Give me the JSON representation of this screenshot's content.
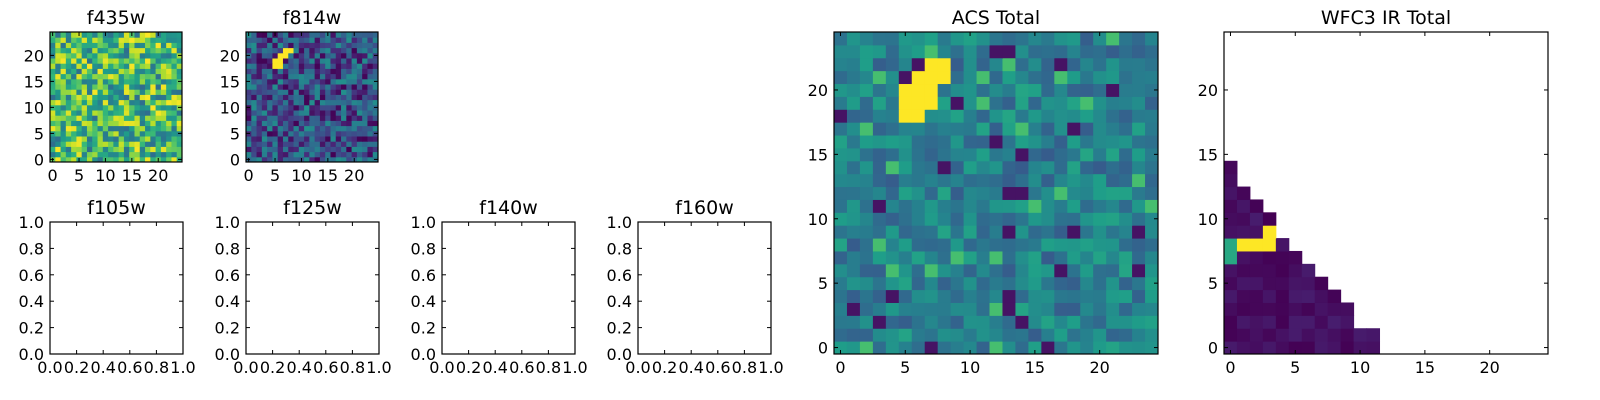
{
  "chart_data": [
    {
      "type": "heatmap",
      "title": "f435w",
      "xlim": [
        -0.5,
        24.5
      ],
      "ylim": [
        -0.5,
        24.5
      ],
      "x_ticks": [
        0,
        5,
        10,
        15,
        20
      ],
      "y_ticks": [
        0,
        5,
        10,
        15,
        20
      ],
      "colormap": "viridis",
      "origin": "lower",
      "grid_size": [
        25,
        25
      ],
      "pattern": "uniform noise"
    },
    {
      "type": "heatmap",
      "title": "f814w",
      "xlim": [
        -0.5,
        24.5
      ],
      "ylim": [
        -0.5,
        24.5
      ],
      "x_ticks": [
        0,
        5,
        10,
        15,
        20
      ],
      "y_ticks": [
        0,
        5,
        10,
        15,
        20
      ],
      "colormap": "viridis",
      "origin": "lower",
      "grid_size": [
        25,
        25
      ],
      "pattern": "dark noise with bright source",
      "bright_pixels": [
        [
          5,
          19
        ],
        [
          6,
          19
        ],
        [
          6,
          20
        ],
        [
          7,
          20
        ],
        [
          7,
          21
        ],
        [
          8,
          21
        ],
        [
          5,
          18
        ],
        [
          6,
          18
        ]
      ]
    },
    {
      "type": "heatmap",
      "title": "f105w",
      "xlim": [
        0,
        1
      ],
      "ylim": [
        0,
        1
      ],
      "x_ticks": [
        "0.0",
        "0.2",
        "0.4",
        "0.6",
        "0.8",
        "1.0"
      ],
      "y_ticks": [
        "0.0",
        "0.2",
        "0.4",
        "0.6",
        "0.8",
        "1.0"
      ],
      "empty": true
    },
    {
      "type": "heatmap",
      "title": "f125w",
      "xlim": [
        0,
        1
      ],
      "ylim": [
        0,
        1
      ],
      "x_ticks": [
        "0.0",
        "0.2",
        "0.4",
        "0.6",
        "0.8",
        "1.0"
      ],
      "y_ticks": [
        "0.0",
        "0.2",
        "0.4",
        "0.6",
        "0.8",
        "1.0"
      ],
      "empty": true
    },
    {
      "type": "heatmap",
      "title": "f140w",
      "xlim": [
        0,
        1
      ],
      "ylim": [
        0,
        1
      ],
      "x_ticks": [
        "0.0",
        "0.2",
        "0.4",
        "0.6",
        "0.8",
        "1.0"
      ],
      "y_ticks": [
        "0.0",
        "0.2",
        "0.4",
        "0.6",
        "0.8",
        "1.0"
      ],
      "empty": true
    },
    {
      "type": "heatmap",
      "title": "f160w",
      "xlim": [
        0,
        1
      ],
      "ylim": [
        0,
        1
      ],
      "x_ticks": [
        "0.0",
        "0.2",
        "0.4",
        "0.6",
        "0.8",
        "1.0"
      ],
      "y_ticks": [
        "0.0",
        "0.2",
        "0.4",
        "0.6",
        "0.8",
        "1.0"
      ],
      "empty": true
    },
    {
      "type": "heatmap",
      "title": "ACS Total",
      "xlim": [
        -0.5,
        24.5
      ],
      "ylim": [
        -0.5,
        24.5
      ],
      "x_ticks": [
        0,
        5,
        10,
        15,
        20
      ],
      "y_ticks": [
        0,
        5,
        10,
        15,
        20
      ],
      "colormap": "viridis",
      "origin": "lower",
      "grid_size": [
        25,
        25
      ],
      "pattern": "teal noise with bright source",
      "bright_pixels": [
        [
          5,
          18
        ],
        [
          6,
          18
        ],
        [
          5,
          19
        ],
        [
          6,
          19
        ],
        [
          7,
          19
        ],
        [
          5,
          20
        ],
        [
          6,
          20
        ],
        [
          7,
          20
        ],
        [
          6,
          21
        ],
        [
          7,
          21
        ],
        [
          8,
          21
        ],
        [
          7,
          22
        ],
        [
          8,
          22
        ]
      ]
    },
    {
      "type": "heatmap",
      "title": "WFC3 IR Total",
      "xlim": [
        -0.5,
        24.5
      ],
      "ylim": [
        -0.5,
        24.5
      ],
      "x_ticks": [
        0,
        5,
        10,
        15,
        20
      ],
      "y_ticks": [
        0,
        5,
        10,
        15,
        20
      ],
      "colormap": "viridis",
      "origin": "lower",
      "grid_size": [
        25,
        25
      ],
      "pattern": "lower-left triangle of low values with bright row",
      "row_widths": [
        12,
        12,
        10,
        10,
        9,
        8,
        7,
        6,
        5,
        4,
        4,
        3,
        2,
        1,
        1
      ],
      "bright_pixels": [
        [
          1,
          8
        ],
        [
          2,
          8
        ],
        [
          3,
          8
        ],
        [
          3,
          9
        ]
      ],
      "mid_pixels": [
        [
          0,
          8
        ],
        [
          0,
          7
        ]
      ]
    }
  ]
}
